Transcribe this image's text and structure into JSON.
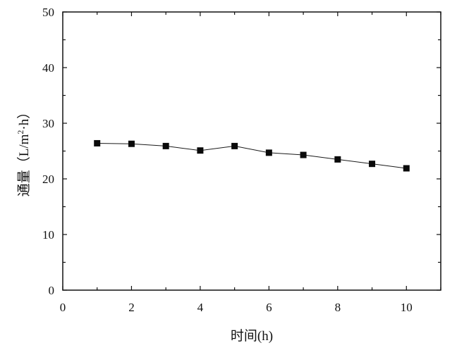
{
  "chart_data": {
    "type": "line",
    "title": "",
    "xlabel": "时间(h)",
    "ylabel": "通量（L/m²·h）",
    "ylabel_parts": {
      "main": "通量（L/m",
      "sup": "2",
      "tail": "·h）"
    },
    "xlim": [
      0,
      11
    ],
    "ylim": [
      0,
      50
    ],
    "xticks": [
      0,
      2,
      4,
      6,
      8,
      10
    ],
    "yticks": [
      0,
      10,
      20,
      30,
      40,
      50
    ],
    "grid": false,
    "legend": "none",
    "marker": "square",
    "colors": {
      "line": "#1a1a1a",
      "marker": "#0a0a0a",
      "axis": "#111111"
    },
    "series": [
      {
        "x": [
          1,
          2,
          3,
          4,
          5,
          6,
          7,
          8,
          9,
          10
        ],
        "values": [
          26.4,
          26.3,
          25.9,
          25.1,
          25.9,
          24.7,
          24.3,
          23.5,
          22.7,
          21.9
        ]
      }
    ]
  }
}
